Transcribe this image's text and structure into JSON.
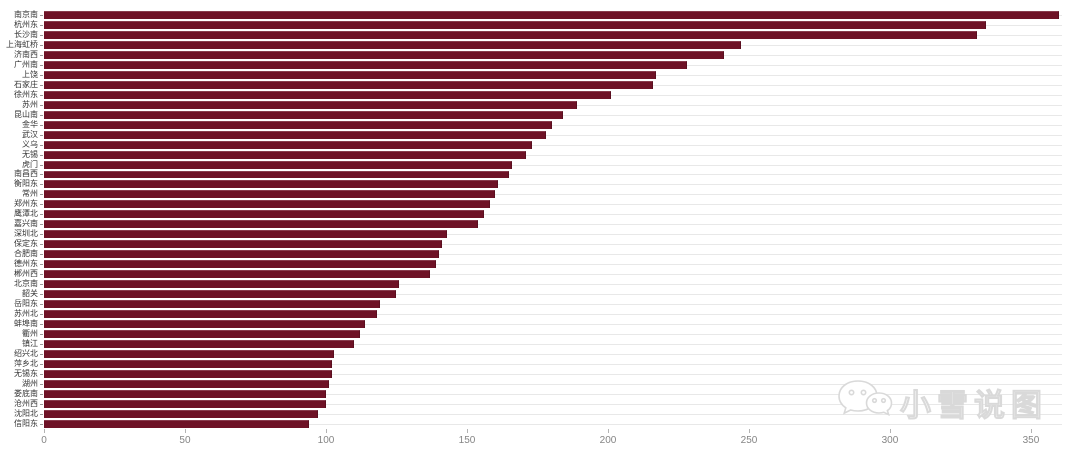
{
  "chart_data": {
    "type": "bar",
    "orientation": "horizontal",
    "title": "",
    "xlabel": "",
    "ylabel": "",
    "xlim": [
      0,
      361
    ],
    "x_ticks": [
      0,
      50,
      100,
      150,
      200,
      250,
      300,
      350
    ],
    "grid": "per-category horizontal gridlines, full plot width",
    "legend": "none",
    "bar_color": "#6e1226",
    "gridline_color": "#e8e8e8",
    "categories": [
      "南京南",
      "杭州东",
      "长沙南",
      "上海虹桥",
      "济南西",
      "广州南",
      "上饶",
      "石家庄",
      "徐州东",
      "苏州",
      "昆山南",
      "金华",
      "武汉",
      "义乌",
      "无锡",
      "虎门",
      "南昌西",
      "衡阳东",
      "常州",
      "郑州东",
      "鹰潭北",
      "嘉兴南",
      "深圳北",
      "保定东",
      "合肥南",
      "德州东",
      "郴州西",
      "北京南",
      "韶关",
      "岳阳东",
      "苏州北",
      "蚌埠南",
      "衢州",
      "镇江",
      "绍兴北",
      "萍乡北",
      "无锡东",
      "湖州",
      "娄底南",
      "沧州西",
      "沈阳北",
      "信阳东"
    ],
    "values": [
      360,
      334,
      331,
      247,
      241,
      228,
      217,
      216,
      201,
      189,
      184,
      180,
      178,
      173,
      171,
      166,
      165,
      161,
      160,
      158,
      156,
      154,
      143,
      141,
      140,
      139,
      137,
      126,
      125,
      119,
      118,
      114,
      112,
      110,
      103,
      102,
      102,
      101,
      100,
      100,
      97,
      94
    ]
  },
  "watermark": {
    "text": "小雪说图",
    "icon": "wechat-icon"
  }
}
